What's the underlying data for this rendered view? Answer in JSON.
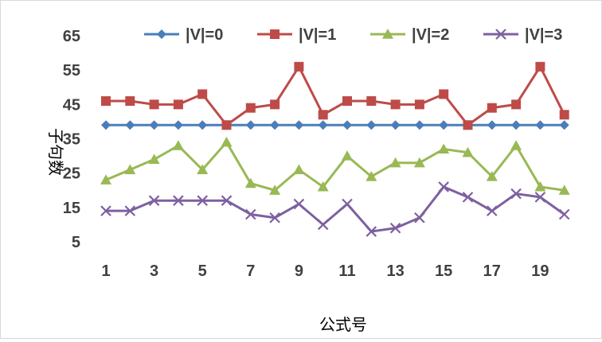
{
  "chart_data": {
    "type": "line",
    "title": "",
    "xlabel": "公式号",
    "ylabel": "子句数",
    "x": [
      1,
      2,
      3,
      4,
      5,
      6,
      7,
      8,
      9,
      10,
      11,
      12,
      13,
      14,
      15,
      16,
      17,
      18,
      19,
      20
    ],
    "x_tick_labels": [
      "1",
      "3",
      "5",
      "7",
      "9",
      "11",
      "13",
      "15",
      "17",
      "19"
    ],
    "y_tick_labels": [
      "5",
      "15",
      "25",
      "35",
      "45",
      "55",
      "65"
    ],
    "ylim": [
      5,
      65
    ],
    "grid": false,
    "legend_position": "top",
    "series": [
      {
        "name": "|V|=0",
        "color": "#4a7ebb",
        "marker": "diamond",
        "values": [
          39,
          39,
          39,
          39,
          39,
          39,
          39,
          39,
          39,
          39,
          39,
          39,
          39,
          39,
          39,
          39,
          39,
          39,
          39,
          39
        ]
      },
      {
        "name": "|V|=1",
        "color": "#be4b48",
        "marker": "square",
        "values": [
          46,
          46,
          45,
          45,
          48,
          39,
          44,
          45,
          56,
          42,
          46,
          46,
          45,
          45,
          48,
          39,
          44,
          45,
          56,
          42
        ]
      },
      {
        "name": "|V|=2",
        "color": "#98b954",
        "marker": "triangle",
        "values": [
          23,
          26,
          29,
          33,
          26,
          34,
          22,
          20,
          26,
          21,
          30,
          24,
          28,
          28,
          32,
          31,
          24,
          33,
          21,
          20
        ]
      },
      {
        "name": "|V|=3",
        "color": "#7d60a0",
        "marker": "x",
        "values": [
          14,
          14,
          17,
          17,
          17,
          17,
          13,
          12,
          16,
          10,
          16,
          8,
          9,
          12,
          21,
          18,
          14,
          19,
          18,
          13
        ]
      }
    ]
  }
}
